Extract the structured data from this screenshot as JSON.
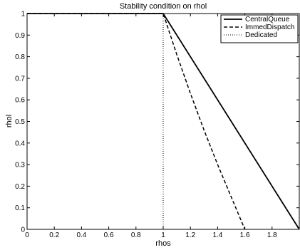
{
  "chart_data": {
    "type": "line",
    "title": "Stability condition on rhol",
    "xlabel": "rhos",
    "ylabel": "rhol",
    "xlim": [
      0,
      2
    ],
    "ylim": [
      0,
      1
    ],
    "xticks": [
      0,
      0.2,
      0.4,
      0.6,
      0.8,
      1,
      1.2,
      1.4,
      1.6,
      1.8
    ],
    "xtick_labels": [
      "0",
      "0.2",
      "0.4",
      "0.6",
      "0.8",
      "1",
      "1.2",
      "1.4",
      "1.6",
      "1.8"
    ],
    "yticks": [
      0,
      0.1,
      0.2,
      0.3,
      0.4,
      0.5,
      0.6,
      0.7,
      0.8,
      0.9,
      1
    ],
    "ytick_labels": [
      "0",
      "0.1",
      "0.2",
      "0.3",
      "0.4",
      "0.5",
      "0.6",
      "0.7",
      "0.8",
      "0.9",
      "1"
    ],
    "grid": false,
    "legend_position": "top-right",
    "series": [
      {
        "name": "CentralQueue",
        "style": "solid",
        "color": "#000000",
        "x": [
          0,
          1,
          2
        ],
        "y": [
          1,
          1,
          0
        ]
      },
      {
        "name": "ImmedDispatch",
        "style": "dashed",
        "color": "#000000",
        "x": [
          0,
          1,
          1.1,
          1.2,
          1.3,
          1.4,
          1.5,
          1.6
        ],
        "y": [
          1,
          1,
          0.81,
          0.63,
          0.46,
          0.3,
          0.15,
          0
        ]
      },
      {
        "name": "Dedicated",
        "style": "dotted",
        "color": "#000000",
        "x": [
          0,
          1,
          1
        ],
        "y": [
          1,
          1,
          0
        ]
      }
    ]
  }
}
